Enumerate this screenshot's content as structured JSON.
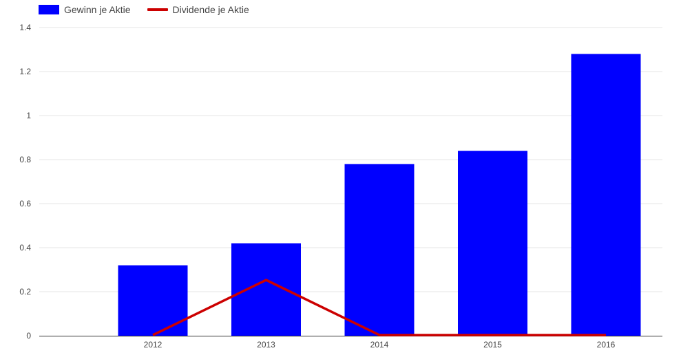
{
  "chart_data": {
    "type": "bar",
    "categories": [
      "2012",
      "2013",
      "2014",
      "2015",
      "2016"
    ],
    "series": [
      {
        "name": "Gewinn je Aktie",
        "type": "bar",
        "color": "#0000ff",
        "values": [
          0.32,
          0.42,
          0.78,
          0.84,
          1.28
        ]
      },
      {
        "name": "Dividende je Aktie",
        "type": "line",
        "color": "#cc0000",
        "values": [
          0,
          0.25,
          0,
          0,
          0
        ]
      }
    ],
    "yticks": [
      "0",
      "0.2",
      "0.4",
      "0.6",
      "0.8",
      "1",
      "1.2",
      "1.4"
    ],
    "ylim": [
      0,
      1.4
    ],
    "grid": true,
    "legend_position": "top-left",
    "title": "",
    "xlabel": "",
    "ylabel": ""
  }
}
